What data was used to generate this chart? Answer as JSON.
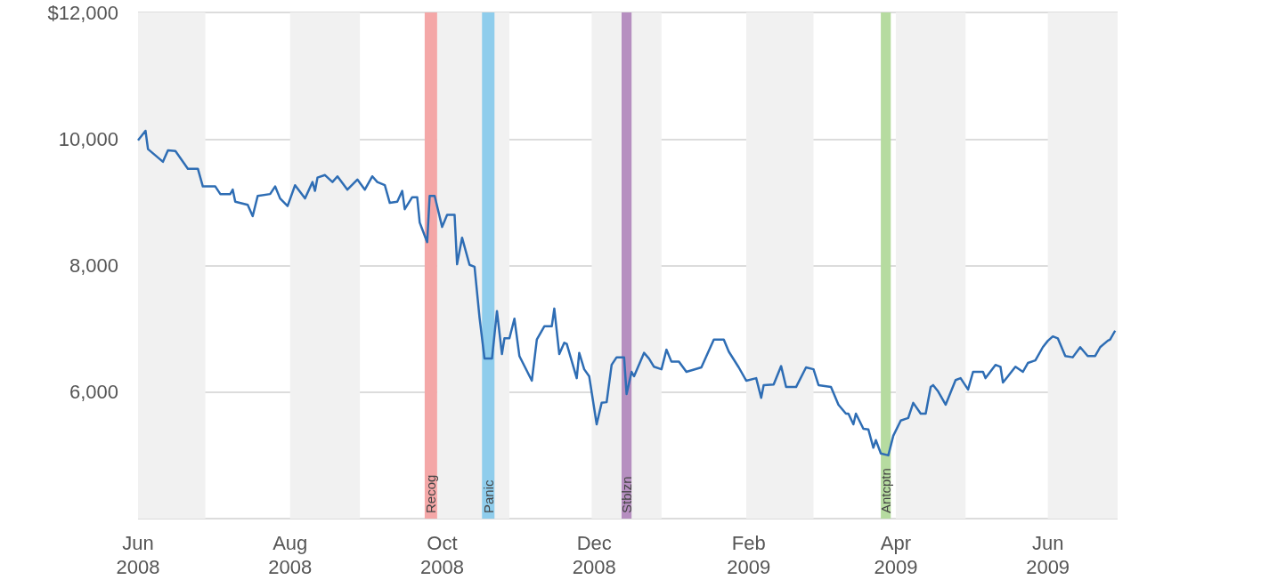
{
  "chart_data": {
    "type": "line",
    "x": [
      "2008-06-01",
      "2008-06-04",
      "2008-06-05",
      "2008-06-11",
      "2008-06-13",
      "2008-06-16",
      "2008-06-21",
      "2008-06-25",
      "2008-06-27",
      "2008-07-02",
      "2008-07-04",
      "2008-07-08",
      "2008-07-09",
      "2008-07-10",
      "2008-07-15",
      "2008-07-17",
      "2008-07-19",
      "2008-07-24",
      "2008-07-26",
      "2008-07-28",
      "2008-07-31",
      "2008-08-03",
      "2008-08-07",
      "2008-08-10",
      "2008-08-11",
      "2008-08-12",
      "2008-08-15",
      "2008-08-18",
      "2008-08-20",
      "2008-08-24",
      "2008-08-28",
      "2008-08-31",
      "2008-09-03",
      "2008-09-05",
      "2008-09-08",
      "2008-09-10",
      "2008-09-13",
      "2008-09-15",
      "2008-09-16",
      "2008-09-19",
      "2008-09-21",
      "2008-09-22",
      "2008-09-25",
      "2008-09-26",
      "2008-09-28",
      "2008-10-01",
      "2008-10-03",
      "2008-10-06",
      "2008-10-07",
      "2008-10-09",
      "2008-10-12",
      "2008-10-14",
      "2008-10-16",
      "2008-10-18",
      "2008-10-21",
      "2008-10-23",
      "2008-10-25",
      "2008-10-26",
      "2008-10-28",
      "2008-10-30",
      "2008-11-01",
      "2008-11-06",
      "2008-11-08",
      "2008-11-11",
      "2008-11-14",
      "2008-11-15",
      "2008-11-17",
      "2008-11-19",
      "2008-11-20",
      "2008-11-24",
      "2008-11-25",
      "2008-11-27",
      "2008-11-29",
      "2008-12-02",
      "2008-12-04",
      "2008-12-06",
      "2008-12-08",
      "2008-12-10",
      "2008-12-13",
      "2008-12-14",
      "2008-12-16",
      "2008-12-17",
      "2008-12-21",
      "2008-12-23",
      "2008-12-25",
      "2008-12-28",
      "2008-12-30",
      "2009-01-01",
      "2009-01-04",
      "2009-01-07",
      "2009-01-13",
      "2009-01-18",
      "2009-01-22",
      "2009-01-24",
      "2009-01-28",
      "2009-01-31",
      "2009-02-04",
      "2009-02-06",
      "2009-02-07",
      "2009-02-11",
      "2009-02-14",
      "2009-02-16",
      "2009-02-20",
      "2009-02-24",
      "2009-02-27",
      "2009-03-01",
      "2009-03-06",
      "2009-03-09",
      "2009-03-12",
      "2009-03-13",
      "2009-03-15",
      "2009-03-16",
      "2009-03-19",
      "2009-03-21",
      "2009-03-23",
      "2009-03-24",
      "2009-03-26",
      "2009-03-29",
      "2009-03-31",
      "2009-04-03",
      "2009-04-06",
      "2009-04-08",
      "2009-04-11",
      "2009-04-13",
      "2009-04-15",
      "2009-04-16",
      "2009-04-18",
      "2009-04-21",
      "2009-04-25",
      "2009-04-27",
      "2009-04-30",
      "2009-05-02",
      "2009-05-06",
      "2009-05-07",
      "2009-05-11",
      "2009-05-13",
      "2009-05-14",
      "2009-05-16",
      "2009-05-19",
      "2009-05-22",
      "2009-05-24",
      "2009-05-27",
      "2009-05-30",
      "2009-06-01",
      "2009-06-03",
      "2009-06-05",
      "2009-06-08",
      "2009-06-11",
      "2009-06-14",
      "2009-06-17",
      "2009-06-20",
      "2009-06-22",
      "2009-06-25",
      "2009-06-26",
      "2009-06-28"
    ],
    "series": [
      {
        "color": "#2e6db4",
        "values": [
          9980,
          10130,
          9840,
          9640,
          9820,
          9810,
          9530,
          9530,
          9250,
          9250,
          9130,
          9130,
          9200,
          9010,
          8960,
          8780,
          9100,
          9130,
          9250,
          9060,
          8940,
          9270,
          9060,
          9320,
          9180,
          9390,
          9430,
          9320,
          9410,
          9200,
          9360,
          9200,
          9410,
          9320,
          9270,
          8990,
          9010,
          9180,
          8890,
          9080,
          9080,
          8680,
          8370,
          9100,
          9100,
          8610,
          8800,
          8800,
          8020,
          8440,
          8010,
          7980,
          7180,
          6530,
          6530,
          7280,
          6600,
          6850,
          6850,
          7160,
          6570,
          6180,
          6830,
          7040,
          7040,
          7320,
          6600,
          6780,
          6760,
          6220,
          6620,
          6360,
          6250,
          5490,
          5830,
          5840,
          6430,
          6550,
          6550,
          5970,
          6320,
          6250,
          6620,
          6530,
          6400,
          6360,
          6670,
          6480,
          6480,
          6320,
          6390,
          6830,
          6830,
          6640,
          6390,
          6180,
          6220,
          5910,
          6110,
          6120,
          6410,
          6080,
          6080,
          6390,
          6360,
          6110,
          6080,
          5800,
          5660,
          5660,
          5490,
          5660,
          5420,
          5410,
          5120,
          5240,
          5030,
          5000,
          5310,
          5550,
          5590,
          5830,
          5660,
          5660,
          6080,
          6110,
          6010,
          5800,
          6190,
          6220,
          6040,
          6320,
          6320,
          6220,
          6430,
          6400,
          6150,
          6250,
          6400,
          6320,
          6460,
          6500,
          6710,
          6810,
          6880,
          6850,
          6570,
          6550,
          6710,
          6570,
          6570,
          6710,
          6810,
          6830,
          6970
        ]
      }
    ],
    "xlim": [
      "2008-06-01",
      "2009-06-29"
    ],
    "xticks": [
      {
        "value": "2008-06-01",
        "label": "Jun\n2008"
      },
      {
        "value": "2008-08-01",
        "label": "Aug\n2008"
      },
      {
        "value": "2008-10-01",
        "label": "Oct\n2008"
      },
      {
        "value": "2008-12-01",
        "label": "Dec\n2008"
      },
      {
        "value": "2009-02-01",
        "label": "Feb\n2009"
      },
      {
        "value": "2009-04-01",
        "label": "Apr\n2009"
      },
      {
        "value": "2009-06-01",
        "label": "Jun\n2009"
      }
    ],
    "ylim": [
      4000,
      12000
    ],
    "yticks": [
      {
        "value": 4000,
        "label": null
      },
      {
        "value": 6000,
        "label": "6,000"
      },
      {
        "value": 8000,
        "label": "8,000"
      },
      {
        "value": 10000,
        "label": "10,000"
      },
      {
        "value": 12000,
        "label": "$12,000"
      }
    ],
    "grid": "y",
    "bands": [
      {
        "axis": "x",
        "from": "2008-06-01",
        "to": "2008-06-28",
        "color": "#f1f1f1"
      },
      {
        "axis": "x",
        "from": "2008-08-01",
        "to": "2008-08-29",
        "color": "#f1f1f1"
      },
      {
        "axis": "x",
        "from": "2008-09-29",
        "to": "2008-10-28",
        "color": "#f1f1f1"
      },
      {
        "axis": "x",
        "from": "2008-11-30",
        "to": "2008-12-28",
        "color": "#f1f1f1"
      },
      {
        "axis": "x",
        "from": "2009-01-31",
        "to": "2009-02-27",
        "color": "#f1f1f1"
      },
      {
        "axis": "x",
        "from": "2009-04-01",
        "to": "2009-04-29",
        "color": "#f1f1f1"
      },
      {
        "axis": "x",
        "from": "2009-06-01",
        "to": "2009-06-29",
        "color": "#f1f1f1"
      },
      {
        "axis": "x",
        "from": "2008-09-24",
        "to": "2008-09-29",
        "label": "Recog",
        "color": "#f4a7a7"
      },
      {
        "axis": "x",
        "from": "2008-10-17",
        "to": "2008-10-22",
        "label": "Panic",
        "color": "#8fcdec"
      },
      {
        "axis": "x",
        "from": "2008-12-12",
        "to": "2008-12-16",
        "label": "Stblzn",
        "color": "#b68fc0"
      },
      {
        "axis": "x",
        "from": "2009-03-26",
        "to": "2009-03-30",
        "label": "Antcptn",
        "color": "#b6dba0"
      }
    ]
  }
}
